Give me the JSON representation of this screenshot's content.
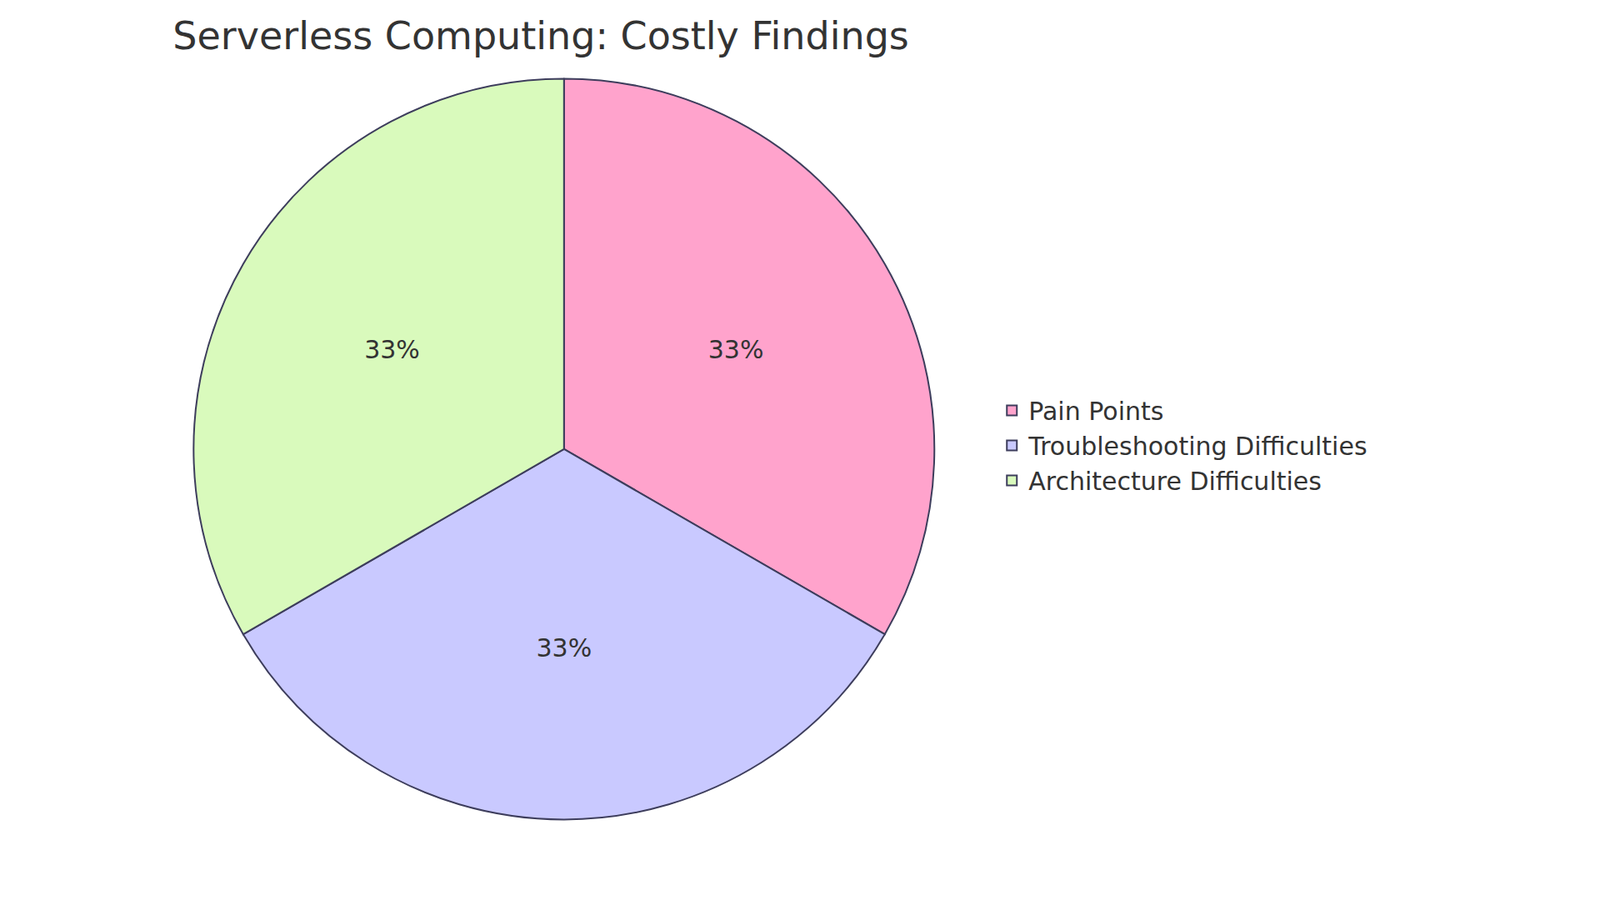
{
  "chart_data": {
    "type": "pie",
    "title": "Serverless Computing: Costly Findings",
    "categories": [
      "Pain Points",
      "Troubleshooting Difficulties",
      "Architecture Difficulties"
    ],
    "values": [
      33,
      33,
      33
    ],
    "value_labels": [
      "33%",
      "33%",
      "33%"
    ],
    "colors": [
      "#ffa3cc",
      "#c9c9ff",
      "#d9fabc"
    ],
    "data_labels": true,
    "legend": "right"
  }
}
